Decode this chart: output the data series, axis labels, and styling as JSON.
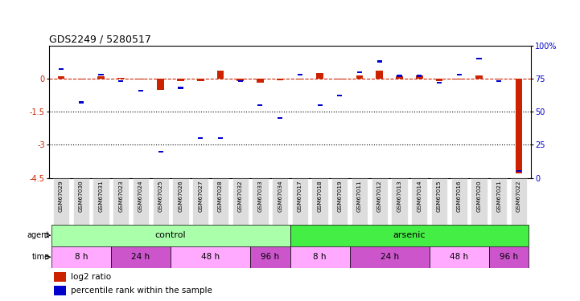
{
  "title": "GDS2249 / 5280517",
  "samples": [
    "GSM67029",
    "GSM67030",
    "GSM67031",
    "GSM67023",
    "GSM67024",
    "GSM67025",
    "GSM67026",
    "GSM67027",
    "GSM67028",
    "GSM67032",
    "GSM67033",
    "GSM67034",
    "GSM67017",
    "GSM67018",
    "GSM67019",
    "GSM67011",
    "GSM67012",
    "GSM67013",
    "GSM67014",
    "GSM67015",
    "GSM67016",
    "GSM67020",
    "GSM67021",
    "GSM67022"
  ],
  "log2_ratio": [
    0.1,
    -0.05,
    0.12,
    0.02,
    -0.05,
    -0.5,
    -0.1,
    -0.12,
    0.35,
    -0.12,
    -0.18,
    -0.08,
    -0.05,
    0.25,
    -0.05,
    0.15,
    0.35,
    0.1,
    0.15,
    -0.1,
    -0.05,
    0.15,
    -0.05,
    -4.3
  ],
  "percentile": [
    82,
    57,
    78,
    73,
    66,
    20,
    68,
    30,
    30,
    73,
    55,
    45,
    78,
    55,
    62,
    80,
    88,
    77,
    77,
    72,
    78,
    90,
    73,
    5
  ],
  "ylim_left": [
    -4.5,
    1.5
  ],
  "ylim_right": [
    0,
    100
  ],
  "yticks_left": [
    0,
    -1.5,
    -3,
    -4.5
  ],
  "yticks_right": [
    0,
    25,
    50,
    75,
    100
  ],
  "ytick_labels_left": [
    "0",
    "-1.5",
    "-3",
    "-4.5"
  ],
  "ytick_labels_right": [
    "0",
    "25",
    "50",
    "75",
    "100%"
  ],
  "hlines": [
    -1.5,
    -3.0
  ],
  "agent_groups": [
    {
      "label": "control",
      "start": 0,
      "end": 11,
      "color": "#aaffaa"
    },
    {
      "label": "arsenic",
      "start": 12,
      "end": 23,
      "color": "#44ee44"
    }
  ],
  "time_groups": [
    {
      "label": "8 h",
      "start": 0,
      "end": 2,
      "color": "#ffaaff"
    },
    {
      "label": "24 h",
      "start": 3,
      "end": 5,
      "color": "#cc55cc"
    },
    {
      "label": "48 h",
      "start": 6,
      "end": 9,
      "color": "#ffaaff"
    },
    {
      "label": "96 h",
      "start": 10,
      "end": 11,
      "color": "#cc55cc"
    },
    {
      "label": "8 h",
      "start": 12,
      "end": 14,
      "color": "#ffaaff"
    },
    {
      "label": "24 h",
      "start": 15,
      "end": 18,
      "color": "#cc55cc"
    },
    {
      "label": "48 h",
      "start": 19,
      "end": 21,
      "color": "#ffaaff"
    },
    {
      "label": "96 h",
      "start": 22,
      "end": 23,
      "color": "#cc55cc"
    }
  ],
  "bar_color_red": "#cc2200",
  "bar_color_blue": "#0000cc",
  "bg_color": "#ffffff",
  "legend_red": "log2 ratio",
  "legend_blue": "percentile rank within the sample",
  "sample_box_color": "#dddddd"
}
